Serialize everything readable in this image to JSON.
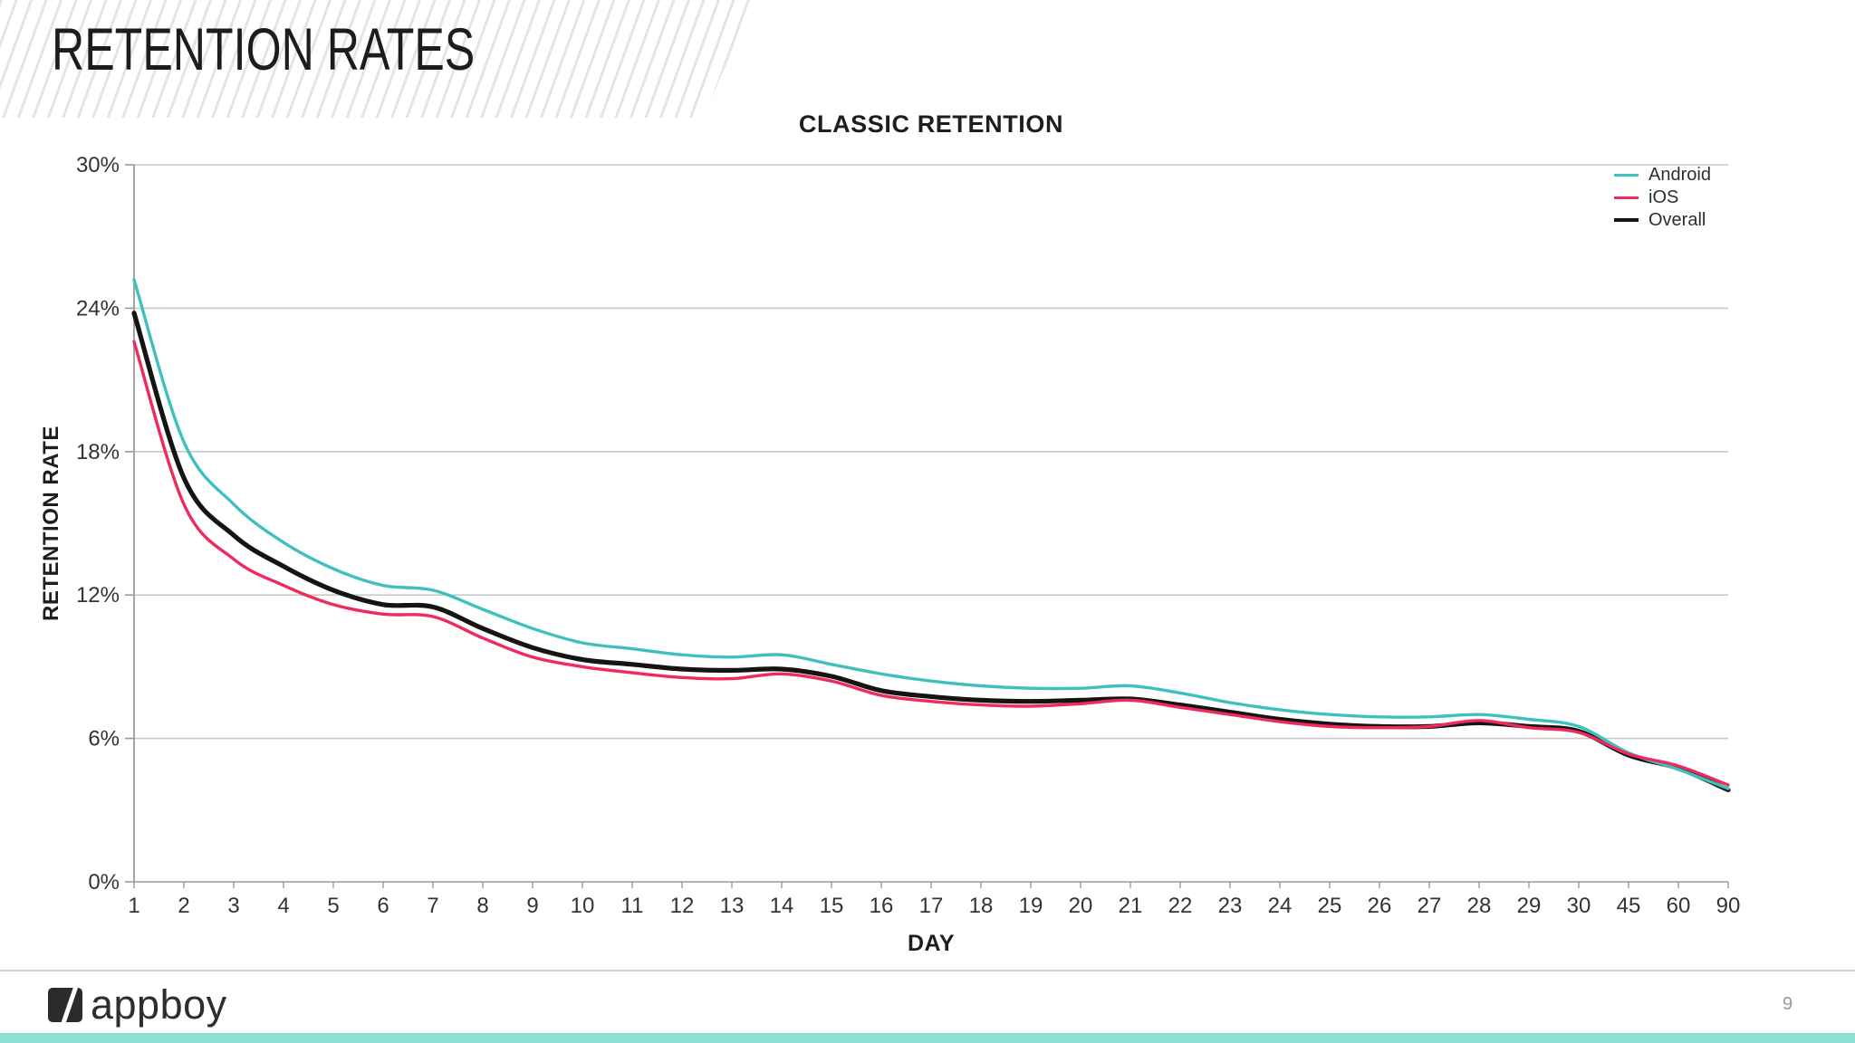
{
  "header": {
    "title": "RETENTION RATES"
  },
  "chart": {
    "title": "CLASSIC RETENTION",
    "x_axis_label": "DAY",
    "y_axis_label": "RETENTION RATE"
  },
  "chart_data": {
    "type": "line",
    "title": "CLASSIC RETENTION",
    "xlabel": "DAY",
    "ylabel": "RETENTION RATE",
    "ylim": [
      0,
      30
    ],
    "y_ticks_percent": [
      30,
      24,
      18,
      12,
      6,
      0
    ],
    "grid": true,
    "legend_position": "top-right",
    "categories": [
      "1",
      "2",
      "3",
      "4",
      "5",
      "6",
      "7",
      "8",
      "9",
      "10",
      "11",
      "12",
      "13",
      "14",
      "15",
      "16",
      "17",
      "18",
      "19",
      "20",
      "21",
      "22",
      "23",
      "24",
      "25",
      "26",
      "27",
      "28",
      "29",
      "30",
      "45",
      "60",
      "90"
    ],
    "series": [
      {
        "name": "Android",
        "color": "#3ec1bd",
        "values": [
          25.2,
          18.4,
          15.8,
          14.2,
          13.1,
          12.4,
          12.2,
          11.4,
          10.6,
          10.0,
          9.75,
          9.5,
          9.4,
          9.5,
          9.1,
          8.7,
          8.4,
          8.2,
          8.1,
          8.1,
          8.2,
          7.9,
          7.5,
          7.2,
          7.0,
          6.9,
          6.9,
          7.0,
          6.8,
          6.5,
          5.4,
          4.7,
          3.9
        ]
      },
      {
        "name": "iOS",
        "color": "#ee2a5f",
        "values": [
          22.6,
          15.8,
          13.5,
          12.4,
          11.6,
          11.2,
          11.1,
          10.2,
          9.4,
          9.0,
          8.75,
          8.55,
          8.5,
          8.7,
          8.4,
          7.8,
          7.55,
          7.4,
          7.35,
          7.45,
          7.6,
          7.3,
          7.0,
          6.7,
          6.5,
          6.45,
          6.5,
          6.75,
          6.45,
          6.25,
          5.35,
          4.85,
          4.05
        ]
      },
      {
        "name": "Overall",
        "color": "#141414",
        "values": [
          23.8,
          16.9,
          14.5,
          13.2,
          12.2,
          11.6,
          11.5,
          10.6,
          9.8,
          9.3,
          9.1,
          8.9,
          8.85,
          8.9,
          8.6,
          8.0,
          7.75,
          7.6,
          7.55,
          7.6,
          7.65,
          7.4,
          7.1,
          6.8,
          6.6,
          6.5,
          6.5,
          6.65,
          6.5,
          6.3,
          5.3,
          4.75,
          3.85
        ]
      }
    ]
  },
  "footer": {
    "brand": "appboy",
    "page_number": "9"
  },
  "colors": {
    "accent_bar": "#8be0d5",
    "banner_stripe": "#e4e4e8",
    "grid_line": "#c9c9c9",
    "axis_line": "#9a9a9a",
    "tick_text": "#333333",
    "android": "#3ec1bd",
    "ios": "#ee2a5f",
    "overall": "#141414"
  }
}
